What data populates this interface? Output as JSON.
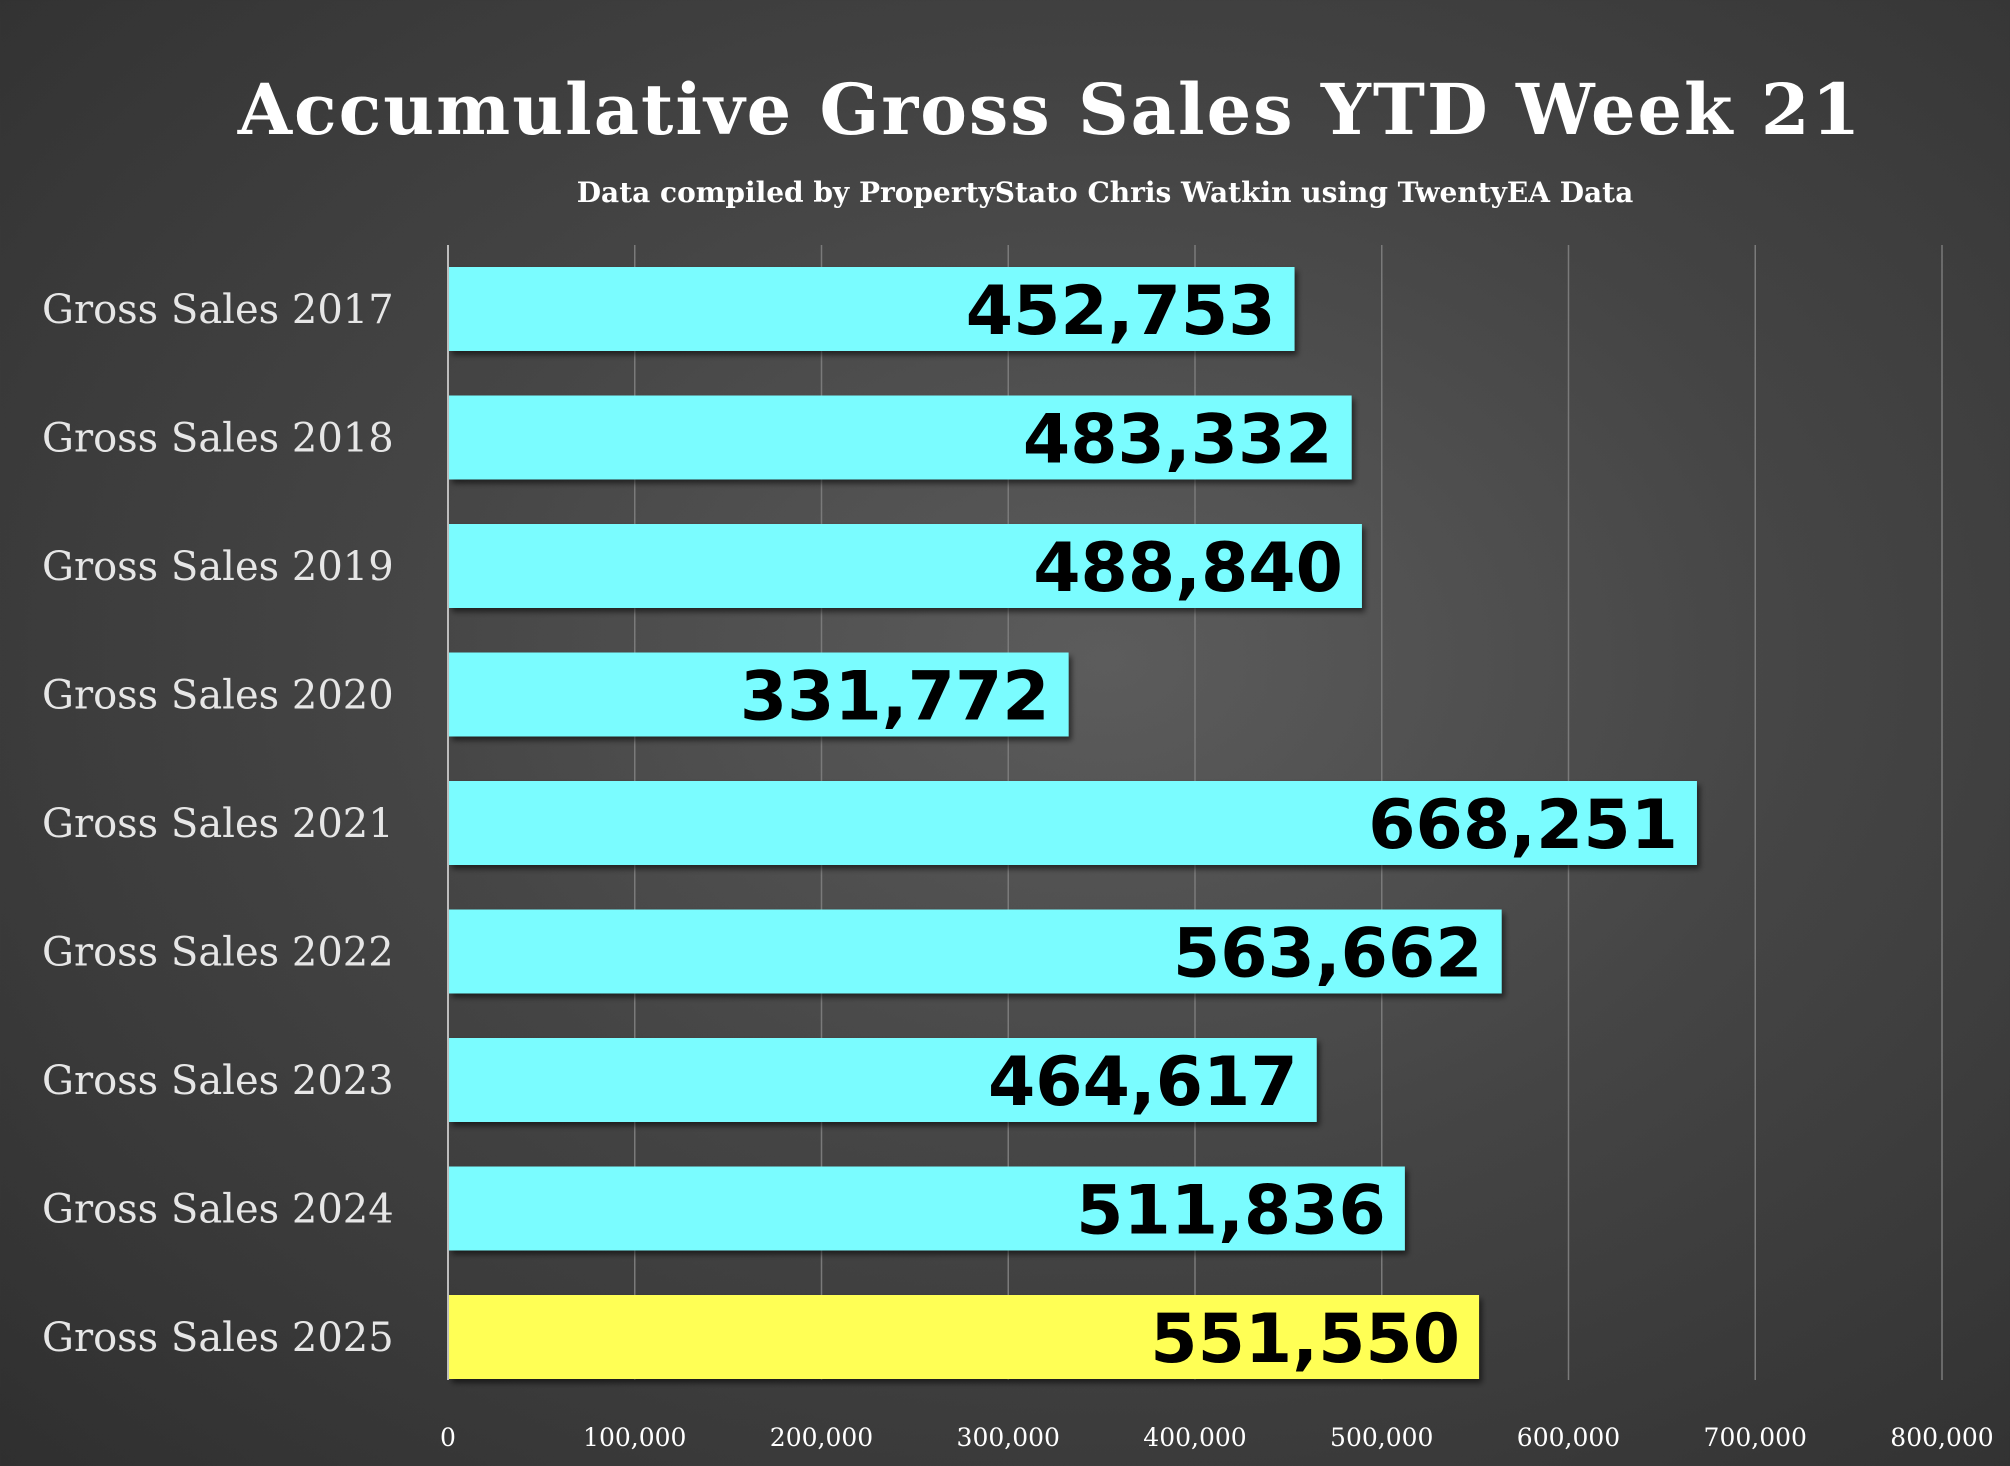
{
  "chart_data": {
    "type": "bar",
    "orientation": "horizontal",
    "title": "Accumulative Gross Sales YTD Week 21",
    "subtitle": "Data compiled by PropertyStato Chris Watkin using TwentyEA Data",
    "categories": [
      "Gross Sales 2017",
      "Gross Sales 2018",
      "Gross Sales 2019",
      "Gross Sales 2020",
      "Gross Sales 2021",
      "Gross Sales 2022",
      "Gross Sales 2023",
      "Gross Sales 2024",
      "Gross Sales 2025"
    ],
    "values": [
      452753,
      483332,
      488840,
      331772,
      668251,
      563662,
      464617,
      511836,
      551550
    ],
    "value_labels": [
      "452,753",
      "483,332",
      "488,840",
      "331,772",
      "668,251",
      "563,662",
      "464,617",
      "511,836",
      "551,550"
    ],
    "bar_colors": [
      "#7afcff",
      "#7afcff",
      "#7afcff",
      "#7afcff",
      "#7afcff",
      "#7afcff",
      "#7afcff",
      "#7afcff",
      "#ffff55"
    ],
    "xlim": [
      0,
      800000
    ],
    "x_ticks": [
      0,
      100000,
      200000,
      300000,
      400000,
      500000,
      600000,
      700000,
      800000
    ],
    "x_tick_labels": [
      "0",
      "100,000",
      "200,000",
      "300,000",
      "400,000",
      "500,000",
      "600,000",
      "700,000",
      "800,000"
    ],
    "grid": true,
    "legend": "none"
  }
}
